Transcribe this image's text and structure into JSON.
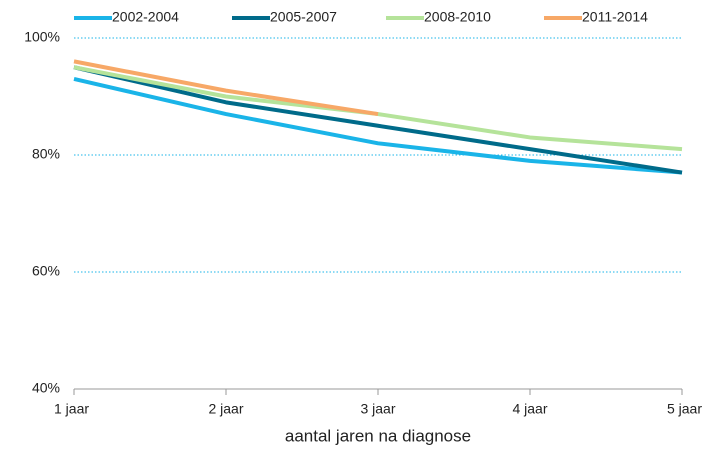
{
  "chart_data": {
    "type": "line",
    "x_label": "aantal jaren na diagnose",
    "categories": [
      "1 jaar",
      "2 jaar",
      "3 jaar",
      "4 jaar",
      "5 jaar"
    ],
    "series": [
      {
        "name": "2002-2004",
        "color": "#1ab4e8",
        "values": [
          93,
          87,
          82,
          79,
          77
        ]
      },
      {
        "name": "2005-2007",
        "color": "#006b8a",
        "values": [
          95,
          89,
          85,
          81,
          77
        ]
      },
      {
        "name": "2008-2010",
        "color": "#b5e39a",
        "values": [
          95,
          90,
          87,
          83,
          81
        ]
      },
      {
        "name": "2011-2014",
        "color": "#f7a867",
        "values": [
          96,
          91,
          87,
          null,
          null
        ]
      }
    ],
    "ylim": [
      40,
      100
    ],
    "yticks": [
      {
        "value": 40,
        "label": "40%"
      },
      {
        "value": 60,
        "label": "60%"
      },
      {
        "value": 80,
        "label": "80%"
      },
      {
        "value": 100,
        "label": "100%"
      }
    ],
    "grid": true,
    "legend": "top"
  }
}
